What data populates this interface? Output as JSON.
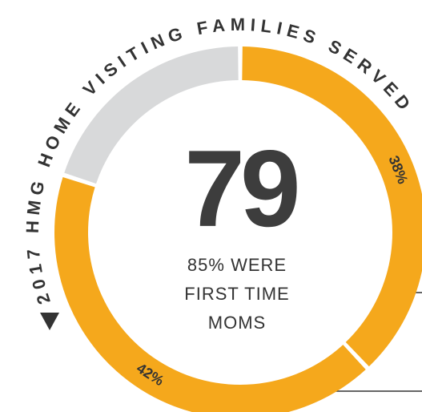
{
  "chart_data": {
    "type": "donut",
    "title": "2017 HMG HOME VISITING FAMILIES SERVED",
    "center_label": "79",
    "center_text": [
      "85% WERE",
      "FIRST TIME",
      "MOMS"
    ],
    "values": [
      38,
      42,
      20
    ],
    "value_labels": [
      "38%",
      "42%",
      null
    ],
    "colors": [
      "#f5a81c",
      "#f5a81c",
      "#d8d9da"
    ]
  }
}
